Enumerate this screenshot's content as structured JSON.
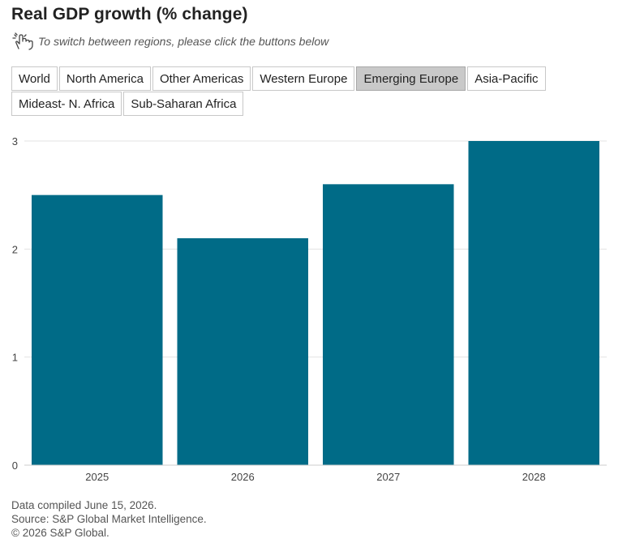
{
  "title": "Real GDP growth (% change)",
  "hint": {
    "text": "To switch between regions, please click the buttons below",
    "icon": "pointing-hand-icon"
  },
  "region_buttons": [
    {
      "label": "World",
      "active": false
    },
    {
      "label": "North America",
      "active": false
    },
    {
      "label": "Other Americas",
      "active": false
    },
    {
      "label": "Western Europe",
      "active": false
    },
    {
      "label": "Emerging Europe",
      "active": true
    },
    {
      "label": "Asia-Pacific",
      "active": false
    },
    {
      "label": "Mideast- N. Africa",
      "active": false
    },
    {
      "label": "Sub-Saharan Africa",
      "active": false
    }
  ],
  "chart_data": {
    "type": "bar",
    "categories": [
      "2025",
      "2026",
      "2027",
      "2028"
    ],
    "values": [
      2.5,
      2.1,
      2.6,
      3.0
    ],
    "yticks": [
      "0",
      "1",
      "2",
      "3"
    ],
    "ylim": [
      0,
      3
    ],
    "grid": true,
    "bar_color": "#006b87",
    "grid_color": "#e3e3e3"
  },
  "footer": {
    "compiled": "Data compiled June 15, 2026.",
    "source": "Source: S&P Global Market Intelligence.",
    "copyright": "© 2026 S&P Global."
  }
}
